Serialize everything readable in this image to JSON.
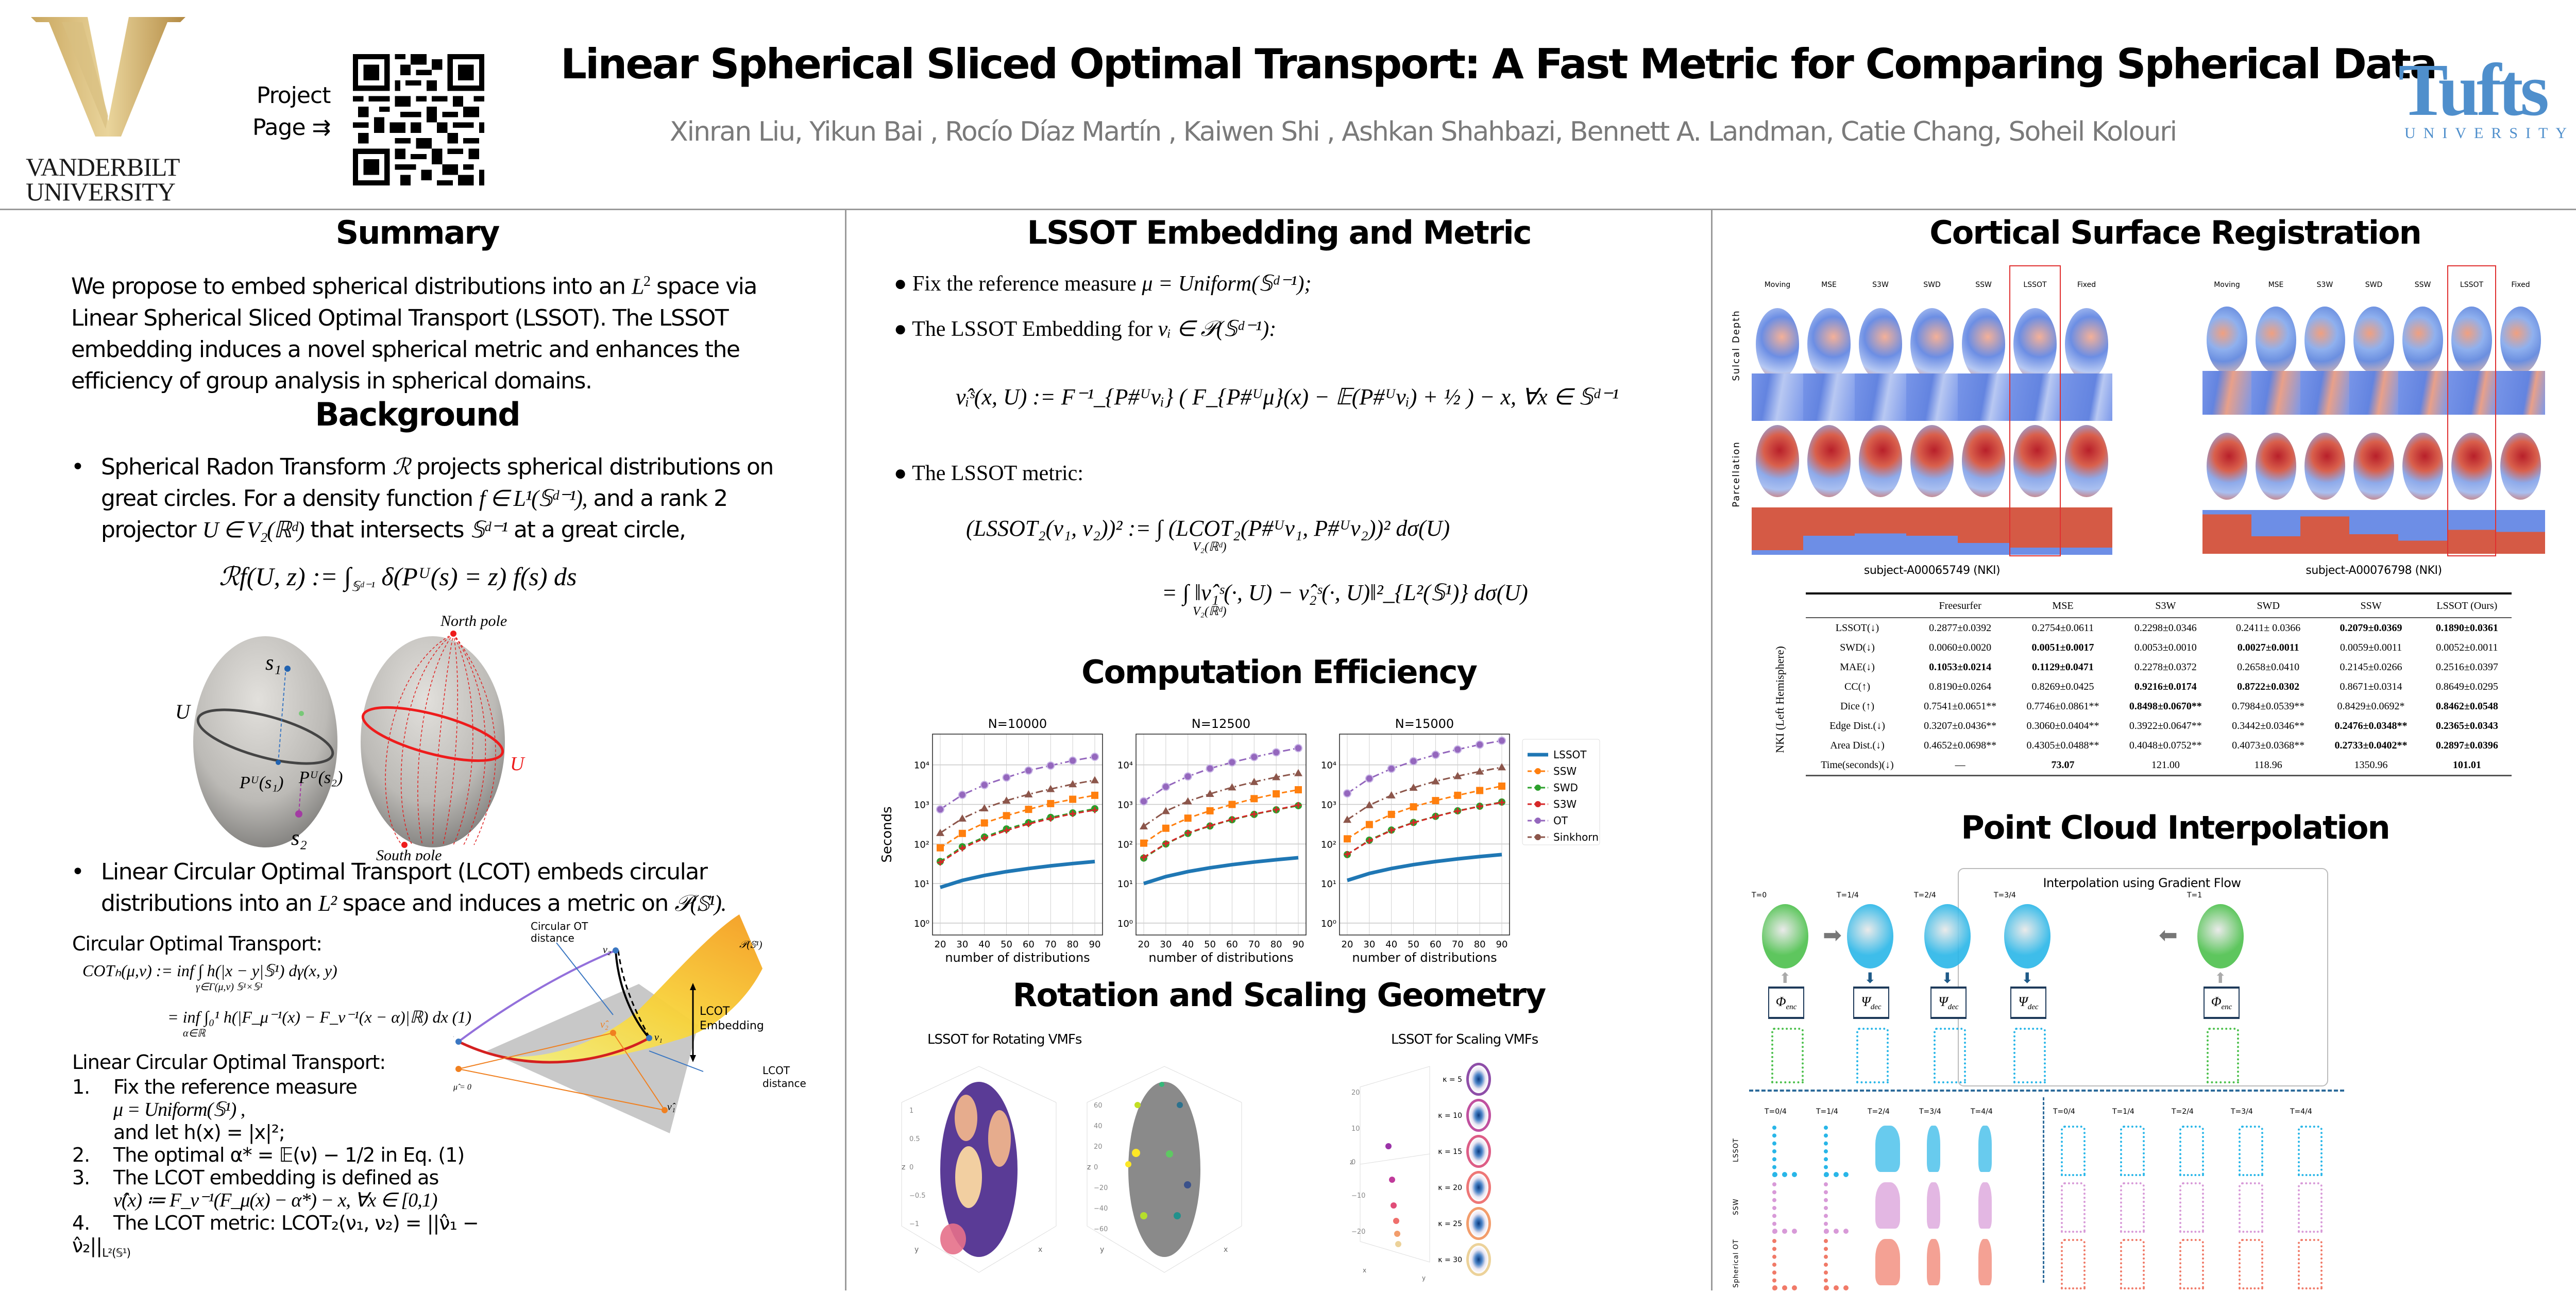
{
  "header": {
    "left_logo": {
      "letter": "V",
      "name_line1": "VANDERBILT",
      "name_line2": "UNIVERSITY",
      "color": "#b8964a"
    },
    "project_page": {
      "line1": "Project",
      "line2": "Page ⇉"
    },
    "title": "Linear Spherical Sliced Optimal Transport: A Fast Metric for Comparing Spherical Data",
    "authors": "Xinran Liu, Yikun Bai , Rocío Díaz Martín , Kaiwen Shi , Ashkan Shahbazi, Bennett A. Landman, Catie Chang, Soheil Kolouri",
    "right_logo": {
      "word": "Tufts",
      "sub": "UNIVERSITY",
      "color": "#4f8fcc"
    }
  },
  "summary": {
    "title": "Summary",
    "text_before": "We propose to embed spherical distributions into an ",
    "math": "L",
    "sup": "2",
    "text_after": " space via Linear Spherical Sliced Optimal Transport (LSSOT). The LSSOT embedding induces a novel spherical metric and enhances the efficiency of group analysis in spherical domains."
  },
  "background": {
    "title": "Background",
    "bullet1": {
      "t1": "Spherical Radon Transform ",
      "m1": "ℛ",
      "t2": " projects spherical distributions on great circles. For a density function ",
      "m2": "f ∈ L¹(𝕊ᵈ⁻¹),",
      "t3": " and a rank 2 projector ",
      "m3": "U ∈ V₂(ℝᵈ)",
      "t4": " that intersects ",
      "m4": "𝕊ᵈ⁻¹",
      "t5": " at a great circle,"
    },
    "radon_eq": "ℛf(U, z) := ∫",
    "radon_sub": "𝕊ᵈ⁻¹",
    "radon_rest": "δ(Pᵁ(s) = z) f(s) ds",
    "sphere_labels": {
      "s1": "s₁",
      "s2": "s₂",
      "u": "U",
      "pu1": "Pᵁ(s₁)",
      "pu2": "Pᵁ(s₂)",
      "north": "North pole",
      "south": "South pole",
      "u_red": "U"
    },
    "bullet2": {
      "t1": "Linear Circular Optimal Transport (LCOT) embeds circular distributions into an ",
      "m1": "L²",
      "t2": " space and induces a metric on ",
      "m2": "𝒫(𝕊¹)."
    },
    "cot_heading": "Circular Optimal Transport:",
    "cot_eq1": "COTₕ(μ,ν) := inf  ∫  h(|x − y|𝕊¹) dγ(x, y)",
    "cot_eq1_sub": "γ∈Γ(μ,ν)   𝕊¹×𝕊¹",
    "cot_eq2": "= inf ∫₀¹ h(|F_μ⁻¹(x) − F_ν⁻¹(x − α)|ℝ) dx    (1)",
    "cot_eq2_sub": "α∈ℝ",
    "lcot_heading": "Linear Circular Optimal Transport:",
    "steps": [
      {
        "num": "1.",
        "line1": "Fix the reference measure",
        "line2": "μ = Uniform(𝕊¹) ,",
        "line3": "and let h(x) = |x|²;"
      },
      {
        "num": "2.",
        "line1": "The optimal α* = 𝔼(ν) − 1/2 in Eq. (1)"
      },
      {
        "num": "3.",
        "line1": "The LCOT embedding is defined as",
        "line2": "ν̂(x) ≔ F_ν⁻¹(F_μ(x) − α*) − x, ∀x ∈ [0,1)"
      },
      {
        "num": "4.",
        "line1": "The LCOT metric: LCOT₂(ν₁, ν₂) = ||ν̂₁ − ν̂₂||",
        "sub": "L²(𝕊¹)"
      }
    ],
    "lcot_figure": {
      "circular_ot": "Circular OT",
      "distance1": "distance",
      "ps1": "𝒫(𝕊¹)",
      "nu2": "ν₂",
      "nu1": "ν₁",
      "nu2hat": "ν̂₂",
      "nu1hat": "ν̂₁",
      "mu": "μ",
      "muhat": "μ̂ = 0",
      "lcot": "LCOT",
      "embedding": "Embedding",
      "lcot2": "LCOT",
      "distance2": "distance"
    }
  },
  "lssot": {
    "title": "LSSOT Embedding and Metric",
    "b1_text": "Fix the reference measure ",
    "b1_math": "μ = Uniform(𝕊ᵈ⁻¹);",
    "b2_text": "The LSSOT Embedding for ",
    "b2_math": "νᵢ ∈ 𝒫(𝕊ᵈ⁻¹):",
    "emb_eq": "ν̂ᵢˢ(x, U) := F⁻¹_{P#ᵁνᵢ} ( F_{P#ᵁμ}(x) − 𝔼(P#ᵁνᵢ) + ½ ) − x,    ∀x ∈ 𝕊ᵈ⁻¹",
    "b3_text": "The LSSOT metric:",
    "metric_eq1": "(LSSOT₂(ν₁, ν₂))² := ∫ (LCOT₂(P#ᵁν₁, P#ᵁν₂))² dσ(U)",
    "metric_eq2": "= ∫ ‖ν̂₁ˢ(·, U) − ν̂₂ˢ(·, U)‖²_{L²(𝕊¹)} dσ(U)",
    "int_sub": "V₂(ℝᵈ)"
  },
  "efficiency": {
    "title": "Computation Efficiency"
  },
  "chart_data": {
    "type": "line",
    "title": "Computation Efficiency",
    "ylabel": "Seconds",
    "xlabel": "number of distributions",
    "yscale": "log",
    "ylim": [
      0.5,
      60000
    ],
    "yticks": [
      "10⁰",
      "10¹",
      "10²",
      "10³",
      "10⁴"
    ],
    "ytick_values": [
      1,
      10,
      100,
      1000,
      10000
    ],
    "x": [
      20,
      30,
      40,
      50,
      60,
      70,
      80,
      90
    ],
    "grid": true,
    "legend_position": "right",
    "legend": [
      "LSSOT",
      "SSW",
      "SWD",
      "S3W",
      "OT",
      "Sinkhorn"
    ],
    "panels": [
      {
        "title": "N=10000",
        "series": [
          {
            "name": "LSSOT",
            "color": "#1f77b4",
            "values": [
              8,
              12,
              16,
              20,
              24,
              28,
              32,
              36
            ]
          },
          {
            "name": "SSW",
            "color": "#ff7f0e",
            "values": [
              80,
              185,
              340,
              520,
              750,
              1050,
              1350,
              1700
            ]
          },
          {
            "name": "SWD",
            "color": "#2ca02c",
            "values": [
              36,
              85,
              150,
              240,
              345,
              470,
              610,
              780
            ]
          },
          {
            "name": "S3W",
            "color": "#d62728",
            "values": [
              34,
              78,
              140,
              220,
              320,
              440,
              580,
              720
            ]
          },
          {
            "name": "OT",
            "color": "#9467bd",
            "values": [
              750,
              1750,
              3100,
              4800,
              7200,
              9600,
              12800,
              16000
            ]
          },
          {
            "name": "Sinkhorn",
            "color": "#8c564b",
            "values": [
              190,
              440,
              800,
              1250,
              1800,
              2450,
              3250,
              4100
            ]
          }
        ]
      },
      {
        "title": "N=12500",
        "series": [
          {
            "name": "LSSOT",
            "color": "#1f77b4",
            "values": [
              10,
              15,
              20,
              25,
              30,
              35,
              40,
              45
            ]
          },
          {
            "name": "SSW",
            "color": "#ff7f0e",
            "values": [
              105,
              250,
              450,
              690,
              1000,
              1400,
              1850,
              2350
            ]
          },
          {
            "name": "SWD",
            "color": "#2ca02c",
            "values": [
              44,
              100,
              185,
              285,
              410,
              560,
              730,
              930
            ]
          },
          {
            "name": "S3W",
            "color": "#d62728",
            "values": [
              46,
              102,
              190,
              290,
              420,
              570,
              740,
              960
            ]
          },
          {
            "name": "OT",
            "color": "#9467bd",
            "values": [
              1200,
              2800,
              5100,
              8100,
              11600,
              15800,
              20800,
              26500
            ]
          },
          {
            "name": "Sinkhorn",
            "color": "#8c564b",
            "values": [
              280,
              680,
              1200,
              1850,
              2700,
              3700,
              4900,
              6200
            ]
          }
        ]
      },
      {
        "title": "N=15000",
        "series": [
          {
            "name": "LSSOT",
            "color": "#1f77b4",
            "values": [
              12,
              18,
              24,
              30,
              36,
              42,
              48,
              54
            ]
          },
          {
            "name": "SSW",
            "color": "#ff7f0e",
            "values": [
              135,
              310,
              560,
              870,
              1250,
              1700,
              2250,
              2900
            ]
          },
          {
            "name": "SWD",
            "color": "#2ca02c",
            "values": [
              54,
              125,
              225,
              350,
              500,
              690,
              900,
              1150
            ]
          },
          {
            "name": "S3W",
            "color": "#d62728",
            "values": [
              55,
              120,
              220,
              345,
              495,
              680,
              890,
              1120
            ]
          },
          {
            "name": "OT",
            "color": "#9467bd",
            "values": [
              1900,
              4500,
              8000,
              12400,
              18000,
              24500,
              32500,
              41000
            ]
          },
          {
            "name": "Sinkhorn",
            "color": "#8c564b",
            "values": [
              410,
              960,
              1700,
              2650,
              3850,
              5200,
              6800,
              8700
            ]
          }
        ]
      }
    ]
  },
  "rotation": {
    "title": "Rotation and Scaling Geometry",
    "left_title": "LSSOT for Rotating VMFs",
    "right_title": "LSSOT for Scaling VMFs",
    "axis_z": "z",
    "axis_x": "x",
    "axis_y": "y",
    "ticks1": [
      "1",
      "0.5",
      "0",
      "−0.5",
      "−1"
    ],
    "ticks2": [
      "60",
      "40",
      "20",
      "0",
      "−20",
      "−40",
      "−60"
    ],
    "ticks3": [
      "20",
      "10",
      "0",
      "−10",
      "−20"
    ],
    "kappas": [
      "κ = 5",
      "κ = 10",
      "κ = 15",
      "κ = 20",
      "κ = 25",
      "κ = 30"
    ],
    "kappa_colors": [
      "#8e4ea8",
      "#c0509f",
      "#dd5d86",
      "#ee7777",
      "#f29d6c",
      "#ecd29a"
    ]
  },
  "cortical": {
    "title": "Cortical Surface Registration",
    "columns": [
      "Moving",
      "MSE",
      "S3W",
      "SWD",
      "SSW",
      "LSSOT",
      "Fixed"
    ],
    "row_labels": [
      "Sulcal Depth",
      "Parcellation"
    ],
    "subjects": [
      "subject-A00065749 (NKI)",
      "subject-A00076798 (NKI)"
    ],
    "highlight_color": "#e03030"
  },
  "results_table": {
    "group_label": "NKI (Left Hemisphere)",
    "headers": [
      "",
      "Freesurfer",
      "MSE",
      "S3W",
      "SWD",
      "SSW",
      "LSSOT (Ours)"
    ],
    "rows": [
      {
        "metric": "LSSOT(↓)",
        "cells": [
          {
            "v": "0.2877±0.0392",
            "b": false
          },
          {
            "v": "0.2754±0.0611",
            "b": false
          },
          {
            "v": "0.2298±0.0346",
            "b": false
          },
          {
            "v": "0.2411± 0.0366",
            "b": false
          },
          {
            "v": "0.2079±0.0369",
            "b": true
          },
          {
            "v": "0.1890±0.0361",
            "b": true
          }
        ]
      },
      {
        "metric": "SWD(↓)",
        "cells": [
          {
            "v": "0.0060±0.0020",
            "b": false
          },
          {
            "v": "0.0051±0.0017",
            "b": true
          },
          {
            "v": "0.0053±0.0010",
            "b": false
          },
          {
            "v": "0.0027±0.0011",
            "b": true
          },
          {
            "v": "0.0059±0.0011",
            "b": false
          },
          {
            "v": "0.0052±0.0011",
            "b": false
          }
        ]
      },
      {
        "metric": "MAE(↓)",
        "cells": [
          {
            "v": "0.1053±0.0214",
            "b": true
          },
          {
            "v": "0.1129±0.0471",
            "b": true
          },
          {
            "v": "0.2278±0.0372",
            "b": false
          },
          {
            "v": "0.2658±0.0410",
            "b": false
          },
          {
            "v": "0.2145±0.0266",
            "b": false
          },
          {
            "v": "0.2516±0.0397",
            "b": false
          }
        ]
      },
      {
        "metric": "CC(↑)",
        "cells": [
          {
            "v": "0.8190±0.0264",
            "b": false
          },
          {
            "v": "0.8269±0.0425",
            "b": false
          },
          {
            "v": "0.9216±0.0174",
            "b": true
          },
          {
            "v": "0.8722±0.0302",
            "b": true
          },
          {
            "v": "0.8671±0.0314",
            "b": false
          },
          {
            "v": "0.8649±0.0295",
            "b": false
          }
        ]
      },
      {
        "metric": "Dice (↑)",
        "cells": [
          {
            "v": "0.7541±0.0651**",
            "b": false
          },
          {
            "v": "0.7746±0.0861**",
            "b": false
          },
          {
            "v": "0.8498±0.0670**",
            "b": true
          },
          {
            "v": "0.7984±0.0539**",
            "b": false
          },
          {
            "v": "0.8429±0.0692*",
            "b": false
          },
          {
            "v": "0.8462±0.0548",
            "b": true
          }
        ]
      },
      {
        "metric": "Edge Dist.(↓)",
        "cells": [
          {
            "v": "0.3207±0.0436**",
            "b": false
          },
          {
            "v": "0.3060±0.0404**",
            "b": false
          },
          {
            "v": "0.3922±0.0647**",
            "b": false
          },
          {
            "v": "0.3442±0.0346**",
            "b": false
          },
          {
            "v": "0.2476±0.0348**",
            "b": true
          },
          {
            "v": "0.2365±0.0343",
            "b": true
          }
        ]
      },
      {
        "metric": "Area Dist.(↓)",
        "cells": [
          {
            "v": "0.4652±0.0698**",
            "b": false
          },
          {
            "v": "0.4305±0.0488**",
            "b": false
          },
          {
            "v": "0.4048±0.0752**",
            "b": false
          },
          {
            "v": "0.4073±0.0368**",
            "b": false
          },
          {
            "v": "0.2733±0.0402**",
            "b": true
          },
          {
            "v": "0.2897±0.0396",
            "b": true
          }
        ]
      },
      {
        "metric": "Time(seconds)(↓)",
        "cells": [
          {
            "v": "—",
            "b": false
          },
          {
            "v": "73.07",
            "b": true
          },
          {
            "v": "121.00",
            "b": false
          },
          {
            "v": "118.96",
            "b": false
          },
          {
            "v": "1350.96",
            "b": false
          },
          {
            "v": "101.01",
            "b": true
          }
        ]
      }
    ]
  },
  "point_cloud": {
    "title": "Point Cloud Interpolation",
    "box_title": "Interpolation using Gradient Flow",
    "top_times": [
      "T=0",
      "T=1/4",
      "T=2/4",
      "T=3/4",
      "T=1"
    ],
    "enc": "Φ",
    "enc_sub": "enc",
    "dec": "Ψ",
    "dec_sub": "dec",
    "grid_times": [
      "T=0/4",
      "T=1/4",
      "T=2/4",
      "T=3/4",
      "T=4/4"
    ],
    "row_labels": [
      "LSSOT",
      "SSW",
      "Spherical OT"
    ],
    "row_colors": [
      "#29b6e8",
      "#d89ad8",
      "#f07a68"
    ],
    "green": "#4cc04c"
  }
}
